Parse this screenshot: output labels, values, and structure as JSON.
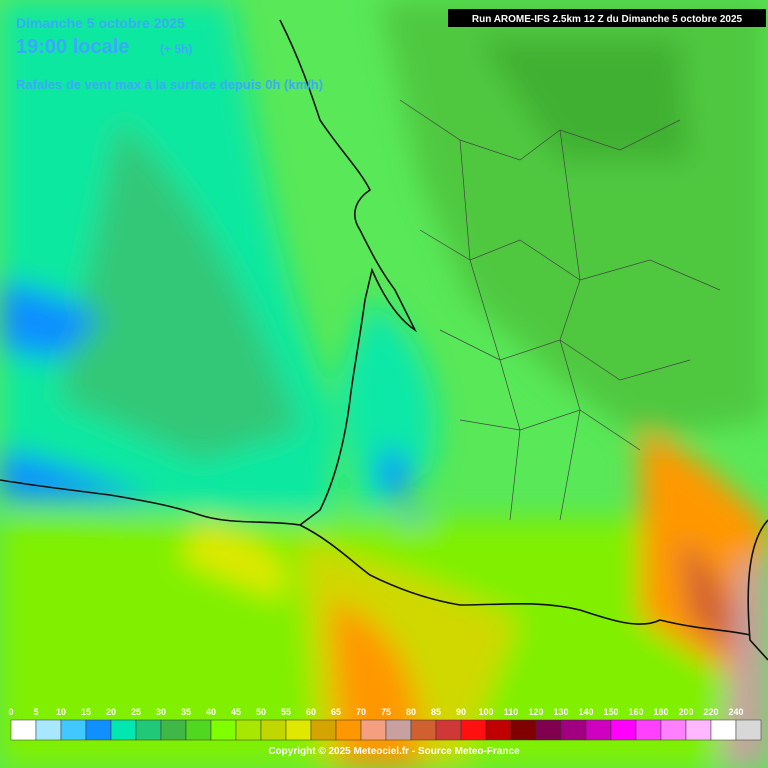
{
  "header": {
    "date": "Dimanche 5 octobre 2025",
    "time": "19:00 locale",
    "offset": "(+ 5h)",
    "parameter": "Rafales de vent max à la surface depuis 0h (km/h)",
    "run": "Run AROME-IFS 2.5km 12 Z du Dimanche 5 octobre 2025"
  },
  "legend": {
    "ticks": [
      0,
      5,
      10,
      15,
      20,
      25,
      30,
      35,
      40,
      45,
      50,
      55,
      60,
      65,
      70,
      75,
      80,
      85,
      90,
      100,
      110,
      120,
      130,
      140,
      150,
      160,
      180,
      200,
      220,
      240
    ],
    "colors": [
      "#ffffff",
      "#a8e8ff",
      "#40c8ff",
      "#1090ff",
      "#00e8b0",
      "#20c878",
      "#40b848",
      "#50d820",
      "#80ff00",
      "#a8e800",
      "#c0d800",
      "#e0e800",
      "#d4a400",
      "#ff9800",
      "#f4a080",
      "#c8a0a0",
      "#d06030",
      "#d03838",
      "#ff1010",
      "#c00000",
      "#800000",
      "#800050",
      "#a00080",
      "#d000c0",
      "#ff00ff",
      "#ff40ff",
      "#ff80ff",
      "#ffb8ff",
      "#ffffff",
      "#d8d8d8"
    ]
  },
  "footer": {
    "copyright": "Copyright © 2025 Meteociel.fr - Source Meteo-France"
  }
}
